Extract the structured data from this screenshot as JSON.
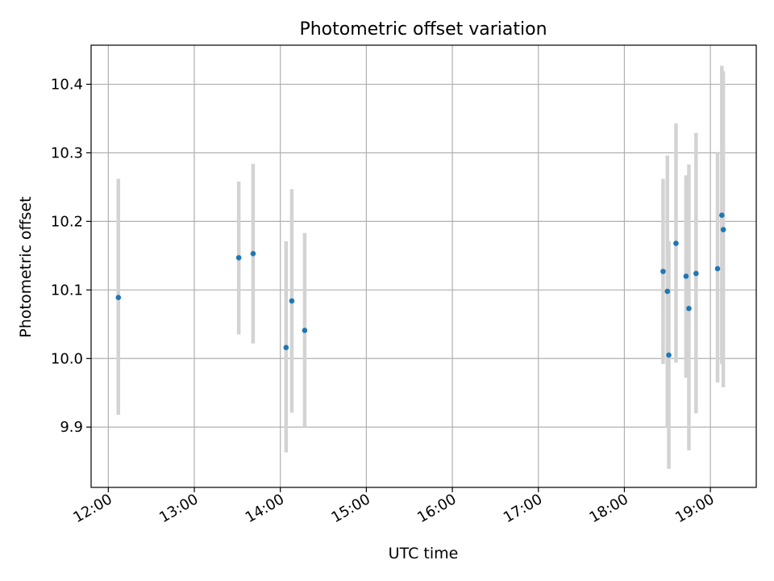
{
  "chart_data": {
    "type": "scatter",
    "title": "Photometric offset variation",
    "xlabel": "UTC time",
    "ylabel": "Photometric offset",
    "x_ticks": [
      "12:00",
      "13:00",
      "14:00",
      "15:00",
      "16:00",
      "17:00",
      "18:00",
      "19:00"
    ],
    "y_ticks": [
      "9.9",
      "10.0",
      "10.1",
      "10.2",
      "10.3",
      "10.4"
    ],
    "xlim": [
      "11:48",
      "19:32"
    ],
    "ylim": [
      9.812,
      10.457
    ],
    "grid": true,
    "point_color": "#1f77b4",
    "errorbar_color": "#d3d3d3",
    "points": [
      {
        "x": "12:07",
        "y": 10.089,
        "err_low": 9.918,
        "err_high": 10.262
      },
      {
        "x": "13:31",
        "y": 10.147,
        "err_low": 10.035,
        "err_high": 10.258
      },
      {
        "x": "13:41",
        "y": 10.153,
        "err_low": 10.022,
        "err_high": 10.284
      },
      {
        "x": "14:04",
        "y": 10.016,
        "err_low": 9.863,
        "err_high": 10.171
      },
      {
        "x": "14:08",
        "y": 10.084,
        "err_low": 9.921,
        "err_high": 10.247
      },
      {
        "x": "14:17",
        "y": 10.041,
        "err_low": 9.9,
        "err_high": 10.183
      },
      {
        "x": "18:27",
        "y": 10.127,
        "err_low": 9.992,
        "err_high": 10.262
      },
      {
        "x": "18:30",
        "y": 10.098,
        "err_low": 9.9,
        "err_high": 10.296
      },
      {
        "x": "18:31",
        "y": 10.005,
        "err_low": 9.839,
        "err_high": 10.171
      },
      {
        "x": "18:36",
        "y": 10.168,
        "err_low": 9.994,
        "err_high": 10.343
      },
      {
        "x": "18:43",
        "y": 10.12,
        "err_low": 9.972,
        "err_high": 10.267
      },
      {
        "x": "18:45",
        "y": 10.073,
        "err_low": 9.866,
        "err_high": 10.283
      },
      {
        "x": "18:50",
        "y": 10.124,
        "err_low": 9.92,
        "err_high": 10.329
      },
      {
        "x": "19:05",
        "y": 10.131,
        "err_low": 9.965,
        "err_high": 10.3
      },
      {
        "x": "19:08",
        "y": 10.209,
        "err_low": 9.992,
        "err_high": 10.427
      },
      {
        "x": "19:09",
        "y": 10.188,
        "err_low": 9.958,
        "err_high": 10.419
      }
    ]
  }
}
